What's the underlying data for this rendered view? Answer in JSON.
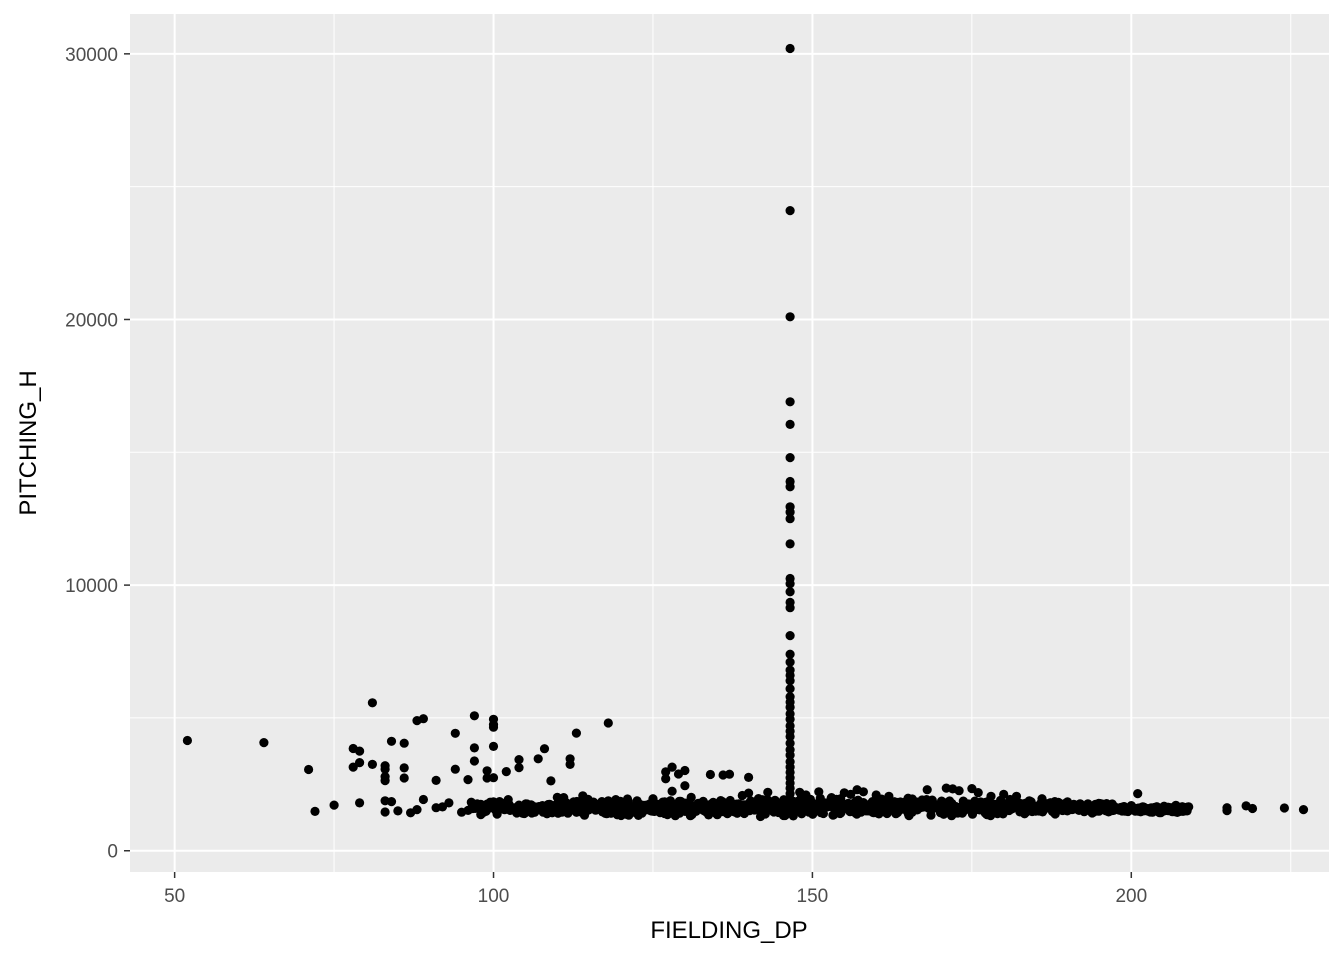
{
  "chart_data": {
    "type": "scatter",
    "title": "",
    "xlabel": "FIELDING_DP",
    "ylabel": "PITCHING_H",
    "xlim": [
      43,
      231
    ],
    "ylim": [
      -800,
      31500
    ],
    "x_ticks": [
      50,
      100,
      150,
      200
    ],
    "x_minor_ticks": [
      75,
      125,
      175,
      225
    ],
    "y_ticks": [
      0,
      10000,
      20000,
      30000
    ],
    "y_minor_ticks": [
      5000,
      15000,
      25000
    ],
    "grid": true,
    "legend": "none",
    "colors": {
      "panel_background": "#ebebeb",
      "grid_major": "#ffffff",
      "point": "#000000",
      "tick_label": "#4d4d4d",
      "axis_title": "#000000"
    },
    "points": [
      [
        52,
        4150
      ],
      [
        64,
        4070
      ],
      [
        71,
        3060
      ],
      [
        72,
        1480
      ],
      [
        75,
        1720
      ],
      [
        78,
        3850
      ],
      [
        78,
        3150
      ],
      [
        79,
        3750
      ],
      [
        79,
        3320
      ],
      [
        79,
        1800
      ],
      [
        81,
        5570
      ],
      [
        81,
        3250
      ],
      [
        83,
        3200
      ],
      [
        83,
        3070
      ],
      [
        83,
        2790
      ],
      [
        83,
        2640
      ],
      [
        83,
        1880
      ],
      [
        83,
        1460
      ],
      [
        84,
        4120
      ],
      [
        84,
        1850
      ],
      [
        85,
        1500
      ],
      [
        86,
        4050
      ],
      [
        86,
        3120
      ],
      [
        86,
        2740
      ],
      [
        87,
        1430
      ],
      [
        88,
        4900
      ],
      [
        88,
        1550
      ],
      [
        89,
        4970
      ],
      [
        89,
        1930
      ],
      [
        91,
        2650
      ],
      [
        91,
        1620
      ],
      [
        92,
        1650
      ],
      [
        93,
        1800
      ],
      [
        94,
        4420
      ],
      [
        94,
        3070
      ],
      [
        95,
        1450
      ],
      [
        96,
        2680
      ],
      [
        97,
        5080
      ],
      [
        97,
        3870
      ],
      [
        97,
        3380
      ],
      [
        98,
        1750
      ],
      [
        98,
        1360
      ],
      [
        99,
        3010
      ],
      [
        99,
        2740
      ],
      [
        100,
        4950
      ],
      [
        100,
        4750
      ],
      [
        100,
        4650
      ],
      [
        100,
        3930
      ],
      [
        100,
        2750
      ],
      [
        100,
        1680
      ],
      [
        101,
        1560
      ],
      [
        102,
        2980
      ],
      [
        104,
        3430
      ],
      [
        104,
        3130
      ],
      [
        104,
        1720
      ],
      [
        106,
        1420
      ],
      [
        107,
        3460
      ],
      [
        108,
        3840
      ],
      [
        108,
        1660
      ],
      [
        109,
        2630
      ],
      [
        110,
        2010
      ],
      [
        111,
        2000
      ],
      [
        112,
        3460
      ],
      [
        112,
        3250
      ],
      [
        113,
        4430
      ],
      [
        114,
        2070
      ],
      [
        115,
        1550
      ],
      [
        118,
        4810
      ],
      [
        118,
        1880
      ],
      [
        119,
        1620
      ],
      [
        121,
        1950
      ],
      [
        122,
        1450
      ],
      [
        124,
        1720
      ],
      [
        125,
        1960
      ],
      [
        127,
        2710
      ],
      [
        127,
        2970
      ],
      [
        128,
        3150
      ],
      [
        128,
        2240
      ],
      [
        129,
        2890
      ],
      [
        130,
        2450
      ],
      [
        130,
        3020
      ],
      [
        131,
        2010
      ],
      [
        133,
        1540
      ],
      [
        134,
        2870
      ],
      [
        136,
        2850
      ],
      [
        137,
        2880
      ],
      [
        139,
        2080
      ],
      [
        140,
        2760
      ],
      [
        140,
        2170
      ],
      [
        142,
        1880
      ],
      [
        143,
        2200
      ],
      [
        146.5,
        30200
      ],
      [
        146.5,
        24100
      ],
      [
        146.5,
        20100
      ],
      [
        146.5,
        16900
      ],
      [
        146.5,
        16050
      ],
      [
        146.5,
        14800
      ],
      [
        146.5,
        13900
      ],
      [
        146.5,
        13700
      ],
      [
        146.5,
        12950
      ],
      [
        146.5,
        12750
      ],
      [
        146.5,
        12500
      ],
      [
        146.5,
        11550
      ],
      [
        146.5,
        10250
      ],
      [
        146.5,
        10050
      ],
      [
        146.5,
        9750
      ],
      [
        146.5,
        9350
      ],
      [
        146.5,
        9150
      ],
      [
        146.5,
        8100
      ],
      [
        146.5,
        7400
      ],
      [
        146.5,
        7100
      ],
      [
        146.5,
        6800
      ],
      [
        146.5,
        6600
      ],
      [
        146.5,
        6400
      ],
      [
        146.5,
        6100
      ],
      [
        146.5,
        5800
      ],
      [
        146.5,
        5600
      ],
      [
        146.5,
        5400
      ],
      [
        146.5,
        5150
      ],
      [
        146.5,
        4950
      ],
      [
        146.5,
        4700
      ],
      [
        146.5,
        4500
      ],
      [
        146.5,
        4300
      ],
      [
        146.5,
        4050
      ],
      [
        146.5,
        3800
      ],
      [
        146.5,
        3600
      ],
      [
        146.5,
        3350
      ],
      [
        146.5,
        3150
      ],
      [
        146.5,
        2950
      ],
      [
        146.5,
        2750
      ],
      [
        146.5,
        2550
      ],
      [
        146.5,
        2350
      ],
      [
        146.5,
        2150
      ],
      [
        146.5,
        1950
      ],
      [
        148,
        2200
      ],
      [
        149,
        2100
      ],
      [
        151,
        2220
      ],
      [
        153,
        2000
      ],
      [
        155,
        2180
      ],
      [
        156,
        2120
      ],
      [
        157,
        2300
      ],
      [
        158,
        2220
      ],
      [
        160,
        2100
      ],
      [
        162,
        2050
      ],
      [
        165,
        1980
      ],
      [
        168,
        2300
      ],
      [
        171,
        2360
      ],
      [
        172,
        2330
      ],
      [
        173,
        2260
      ],
      [
        175,
        2340
      ],
      [
        176,
        2190
      ],
      [
        178,
        2050
      ],
      [
        180,
        2120
      ],
      [
        181,
        1930
      ],
      [
        182,
        2050
      ],
      [
        184,
        1880
      ],
      [
        186,
        1960
      ],
      [
        188,
        1850
      ],
      [
        190,
        1840
      ],
      [
        192,
        1760
      ],
      [
        195,
        1690
      ],
      [
        197,
        1760
      ],
      [
        200,
        1700
      ],
      [
        201,
        2150
      ],
      [
        202,
        1640
      ],
      [
        203,
        1460
      ],
      [
        204,
        1660
      ],
      [
        205,
        1610
      ],
      [
        206,
        1580
      ],
      [
        207,
        1710
      ],
      [
        208,
        1660
      ],
      [
        209,
        1650
      ],
      [
        215,
        1620
      ],
      [
        215,
        1510
      ],
      [
        218,
        1690
      ],
      [
        219,
        1590
      ],
      [
        224,
        1610
      ],
      [
        227,
        1550
      ]
    ],
    "band_ranges": [
      [
        96,
        99,
        1350,
        1950
      ],
      [
        99,
        103,
        1300,
        2000
      ],
      [
        103,
        110,
        1350,
        1850
      ],
      [
        110,
        120,
        1300,
        1950
      ],
      [
        120,
        130,
        1300,
        1950
      ],
      [
        130,
        140,
        1280,
        1950
      ],
      [
        140,
        150,
        1250,
        2050
      ],
      [
        150,
        160,
        1300,
        2050
      ],
      [
        160,
        170,
        1300,
        2000
      ],
      [
        170,
        180,
        1300,
        1950
      ],
      [
        180,
        190,
        1320,
        1900
      ],
      [
        190,
        197,
        1380,
        1800
      ],
      [
        197,
        209,
        1420,
        1700
      ]
    ]
  }
}
